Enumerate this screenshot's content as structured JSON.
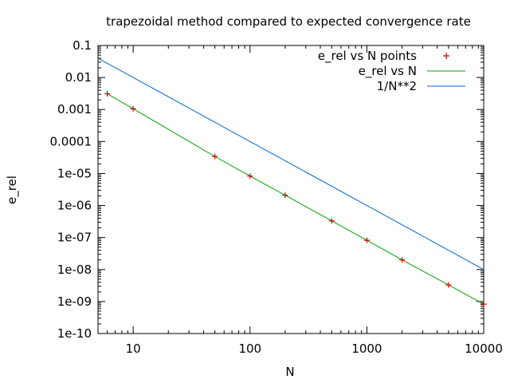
{
  "chart_data": {
    "type": "line",
    "title": "trapezoidal method compared to expected convergence rate",
    "xlabel": "N",
    "ylabel": "e_rel",
    "xscale": "log",
    "yscale": "log",
    "xlim": [
      5,
      10000
    ],
    "ylim": [
      1e-10,
      0.1
    ],
    "x_ticks": [
      {
        "value": 10,
        "label": "10"
      },
      {
        "value": 100,
        "label": "100"
      },
      {
        "value": 1000,
        "label": "1000"
      },
      {
        "value": 10000,
        "label": "10000"
      }
    ],
    "y_ticks": [
      {
        "value": 0.1,
        "label": "0.1"
      },
      {
        "value": 0.01,
        "label": "0.01"
      },
      {
        "value": 0.001,
        "label": "0.001"
      },
      {
        "value": 0.0001,
        "label": "0.0001"
      },
      {
        "value": 1e-05,
        "label": "1e-05"
      },
      {
        "value": 1e-06,
        "label": "1e-06"
      },
      {
        "value": 1e-07,
        "label": "1e-07"
      },
      {
        "value": 1e-08,
        "label": "1e-08"
      },
      {
        "value": 1e-09,
        "label": "1e-09"
      },
      {
        "value": 1e-10,
        "label": "1e-10"
      }
    ],
    "legend_position": "top-right",
    "grid": false,
    "series": [
      {
        "name": "e_rel vs N points",
        "style": "points",
        "color": "#cc0000",
        "x": [
          6,
          10,
          50,
          100,
          200,
          500,
          1000,
          2000,
          5000,
          10000
        ],
        "y": [
          0.0031,
          0.00105,
          3.4e-05,
          8.3e-06,
          2.1e-06,
          3.3e-07,
          8.2e-08,
          2e-08,
          3.3e-09,
          8.3e-10
        ]
      },
      {
        "name": "e_rel vs N",
        "style": "line",
        "color": "#00a000",
        "x": [
          6,
          10,
          50,
          100,
          200,
          500,
          1000,
          2000,
          5000,
          10000
        ],
        "y": [
          0.0031,
          0.00105,
          3.4e-05,
          8.3e-06,
          2.1e-06,
          3.3e-07,
          8.2e-08,
          2e-08,
          3.3e-09,
          8.3e-10
        ]
      },
      {
        "name": "1/N**2",
        "style": "line",
        "color": "#0066cc",
        "x": [
          5,
          10000
        ],
        "y": [
          0.04,
          1e-08
        ]
      }
    ]
  }
}
